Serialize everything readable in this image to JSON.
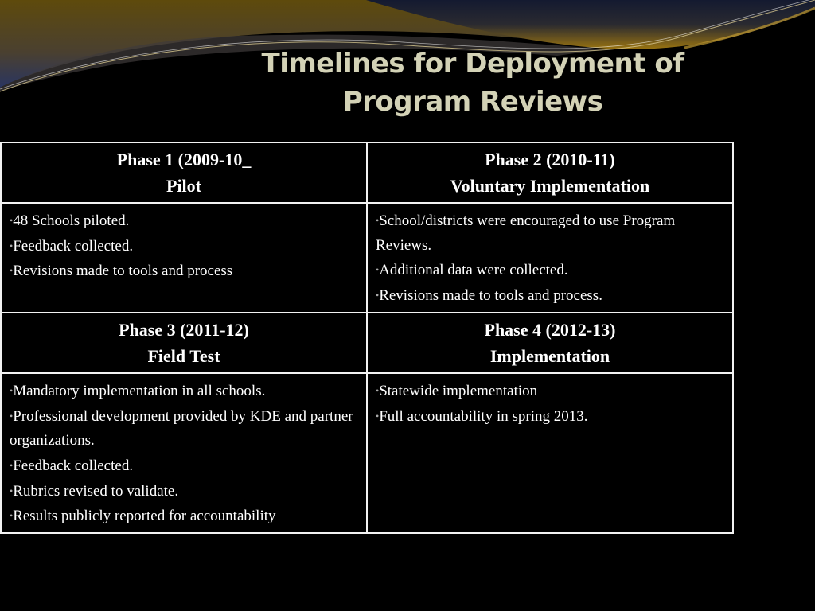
{
  "slide": {
    "title_line1": "Timelines for Deployment of",
    "title_line2": "Program Reviews"
  },
  "colors": {
    "background": "#000000",
    "title": "#d3d2b6",
    "accent_gold": "#8a6a10",
    "accent_blue": "#2c3a66"
  },
  "table": {
    "phases": [
      {
        "heading": "Phase 1 (2009-10_",
        "subheading": "Pilot",
        "bullets": [
          "48 Schools piloted.",
          "Feedback collected.",
          "Revisions made to tools and process"
        ]
      },
      {
        "heading": "Phase 2 (2010-11)",
        "subheading": "Voluntary Implementation",
        "bullets": [
          "School/districts were encouraged to use Program Reviews.",
          "Additional data were collected.",
          "Revisions made to tools and process."
        ]
      },
      {
        "heading": "Phase 3 (2011-12)",
        "subheading": "Field Test",
        "bullets": [
          "Mandatory implementation in all schools.",
          "Professional development provided by KDE and partner organizations.",
          "Feedback collected.",
          "Rubrics revised to validate.",
          "Results publicly reported for accountability"
        ]
      },
      {
        "heading": "Phase 4 (2012-13)",
        "subheading": "Implementation",
        "bullets": [
          "Statewide implementation",
          "Full accountability in spring 2013."
        ]
      }
    ]
  }
}
